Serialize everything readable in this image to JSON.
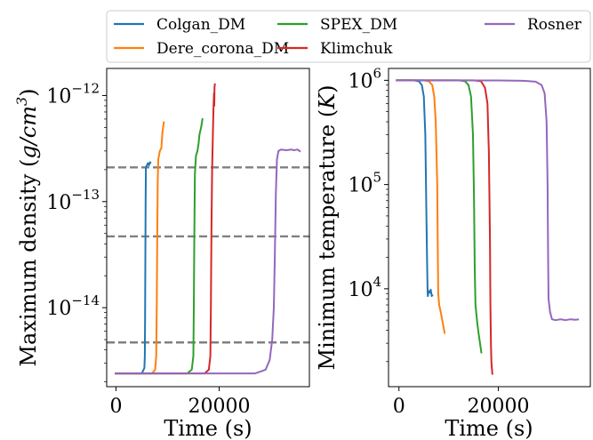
{
  "chart_data": [
    {
      "type": "line",
      "ylabel": "Maximum density (g/cm^3)",
      "ylabel_main": "Maximum density (",
      "ylabel_unit": "g/cm",
      "ylabel_exp": "3",
      "ylabel_close": ")",
      "xlabel": "Time (s)",
      "xlim": [
        -1800,
        37500
      ],
      "ylim": [
        1.8e-15,
        1.8e-12
      ],
      "yscale": "log",
      "xticks": [
        {
          "value": 0,
          "label": "0"
        },
        {
          "value": 20000,
          "label": "20000"
        }
      ],
      "yticks": [
        {
          "value": 1e-14,
          "base": "10",
          "exp": "−14"
        },
        {
          "value": 1e-13,
          "base": "10",
          "exp": "−13"
        },
        {
          "value": 1e-12,
          "base": "10",
          "exp": "−12"
        }
      ],
      "hlines": [
        2.1e-13,
        4.7e-14,
        4.7e-15
      ],
      "series": [
        {
          "name": "Colgan_DM",
          "color": "#1f77b4",
          "points": [
            [
              -200,
              2.4e-15
            ],
            [
              5000,
              2.4e-15
            ],
            [
              5500,
              2.7e-15
            ],
            [
              5600,
              3.5e-15
            ],
            [
              5650,
              8e-15
            ],
            [
              5700,
              3e-14
            ],
            [
              5750,
              1e-13
            ],
            [
              5800,
              2.1e-13
            ],
            [
              6000,
              2.2e-13
            ],
            [
              6200,
              2.3e-13
            ],
            [
              6400,
              2.2e-13
            ],
            [
              6600,
              2.35e-13
            ],
            [
              6800,
              2.3e-13
            ]
          ]
        },
        {
          "name": "Dere_corona_DM",
          "color": "#ff7f0e",
          "points": [
            [
              -200,
              2.4e-15
            ],
            [
              7000,
              2.4e-15
            ],
            [
              7600,
              2.6e-15
            ],
            [
              7800,
              3.5e-15
            ],
            [
              7900,
              1e-14
            ],
            [
              8000,
              5e-14
            ],
            [
              8100,
              1.5e-13
            ],
            [
              8200,
              2.5e-13
            ],
            [
              8500,
              3e-13
            ],
            [
              8800,
              3.2e-13
            ],
            [
              9000,
              4.5e-13
            ],
            [
              9300,
              5.7e-13
            ]
          ]
        },
        {
          "name": "SPEX_DM",
          "color": "#2ca02c",
          "points": [
            [
              -200,
              2.4e-15
            ],
            [
              13800,
              2.4e-15
            ],
            [
              14700,
              2.6e-15
            ],
            [
              15000,
              3.5e-15
            ],
            [
              15100,
              1e-14
            ],
            [
              15200,
              5e-14
            ],
            [
              15300,
              1.8e-13
            ],
            [
              15500,
              2.7e-13
            ],
            [
              15800,
              3e-13
            ],
            [
              16000,
              3.5e-13
            ],
            [
              16200,
              4.3e-13
            ],
            [
              16500,
              5e-13
            ],
            [
              16800,
              6.1e-13
            ]
          ]
        },
        {
          "name": "Klimchuk",
          "color": "#d62728",
          "points": [
            [
              -200,
              2.4e-15
            ],
            [
              17200,
              2.4e-15
            ],
            [
              18000,
              2.6e-15
            ],
            [
              18300,
              3.5e-15
            ],
            [
              18400,
              1e-14
            ],
            [
              18500,
              5e-14
            ],
            [
              18650,
              2e-13
            ],
            [
              18800,
              4.5e-13
            ],
            [
              18900,
              7.5e-13
            ],
            [
              19000,
              1.05e-12
            ],
            [
              19050,
              8e-13
            ],
            [
              19100,
              1.2e-12
            ],
            [
              19200,
              1.3e-12
            ]
          ]
        },
        {
          "name": "Rosner",
          "color": "#9467bd",
          "points": [
            [
              -200,
              2.4e-15
            ],
            [
              27000,
              2.4e-15
            ],
            [
              29000,
              2.6e-15
            ],
            [
              29800,
              3.2e-15
            ],
            [
              30300,
              5e-15
            ],
            [
              30600,
              1e-14
            ],
            [
              30800,
              3e-14
            ],
            [
              31000,
              1.2e-13
            ],
            [
              31200,
              2.5e-13
            ],
            [
              31500,
              3e-13
            ],
            [
              32000,
              3.1e-13
            ],
            [
              33000,
              3.05e-13
            ],
            [
              34000,
              3.1e-13
            ],
            [
              34500,
              3.05e-13
            ],
            [
              35200,
              3.1e-13
            ],
            [
              35800,
              2.95e-13
            ]
          ]
        }
      ]
    },
    {
      "type": "line",
      "ylabel": "Minimum temperature (K)",
      "ylabel_main": "Minimum temperature (",
      "ylabel_unit": "K",
      "ylabel_close": ")",
      "xlabel": "Time (s)",
      "xlim": [
        -2100,
        38500
      ],
      "ylim": [
        1150,
        1300000.0
      ],
      "yscale": "log",
      "xticks": [
        {
          "value": 0,
          "label": "0"
        },
        {
          "value": 20000,
          "label": "20000"
        }
      ],
      "yticks": [
        {
          "value": 10000,
          "base": "10",
          "exp": "4"
        },
        {
          "value": 100000,
          "base": "10",
          "exp": "5"
        },
        {
          "value": 1000000,
          "base": "10",
          "exp": "6"
        }
      ],
      "series": [
        {
          "name": "Colgan_DM",
          "color": "#1f77b4",
          "points": [
            [
              -600,
              1000000.0
            ],
            [
              3000,
              1000000.0
            ],
            [
              4000,
              980000.0
            ],
            [
              4600,
              900000.0
            ],
            [
              5000,
              700000.0
            ],
            [
              5300,
              300000.0
            ],
            [
              5500,
              60000.0
            ],
            [
              5650,
              20000.0
            ],
            [
              5750,
              10000.0
            ],
            [
              5800,
              8500.0
            ],
            [
              6000,
              9500.0
            ],
            [
              6200,
              9200.0
            ],
            [
              6400,
              9800.0
            ],
            [
              6600,
              8500.0
            ],
            [
              6800,
              8800.0
            ]
          ]
        },
        {
          "name": "Dere_corona_DM",
          "color": "#ff7f0e",
          "points": [
            [
              -600,
              1000000.0
            ],
            [
              5000,
              1000000.0
            ],
            [
              6000,
              980000.0
            ],
            [
              6700,
              900000.0
            ],
            [
              7100,
              700000.0
            ],
            [
              7400,
              400000.0
            ],
            [
              7700,
              100000.0
            ],
            [
              7800,
              25000.0
            ],
            [
              7900,
              9000.0
            ],
            [
              8100,
              7000.0
            ],
            [
              8400,
              6000.0
            ],
            [
              8700,
              5000.0
            ],
            [
              9000,
              4200.0
            ],
            [
              9200,
              3700.0
            ]
          ]
        },
        {
          "name": "SPEX_DM",
          "color": "#2ca02c",
          "points": [
            [
              -600,
              1000000.0
            ],
            [
              12000,
              1000000.0
            ],
            [
              13300,
              980000.0
            ],
            [
              14000,
              900000.0
            ],
            [
              14500,
              700000.0
            ],
            [
              14900,
              300000.0
            ],
            [
              15100,
              70000.0
            ],
            [
              15250,
              15000.0
            ],
            [
              15400,
              7000.0
            ],
            [
              15600,
              5500.0
            ],
            [
              15800,
              4500.0
            ],
            [
              16000,
              3800.0
            ],
            [
              16300,
              3000.0
            ],
            [
              16600,
              2400.0
            ]
          ]
        },
        {
          "name": "Klimchuk",
          "color": "#d62728",
          "points": [
            [
              -600,
              1000000.0
            ],
            [
              15000,
              1000000.0
            ],
            [
              16500,
              980000.0
            ],
            [
              17300,
              850000.0
            ],
            [
              17800,
              600000.0
            ],
            [
              18100,
              200000.0
            ],
            [
              18300,
              30000.0
            ],
            [
              18400,
              7000.0
            ],
            [
              18500,
              3000.0
            ],
            [
              18600,
              2000.0
            ],
            [
              18700,
              1700.0
            ],
            [
              18800,
              1500.0
            ]
          ]
        },
        {
          "name": "Rosner",
          "color": "#9467bd",
          "points": [
            [
              -600,
              1000000.0
            ],
            [
              20000,
              998000.0
            ],
            [
              25000,
              990000.0
            ],
            [
              27500,
              970000.0
            ],
            [
              28700,
              900000.0
            ],
            [
              29300,
              750000.0
            ],
            [
              29700,
              400000.0
            ],
            [
              29900,
              100000.0
            ],
            [
              30000,
              20000.0
            ],
            [
              30100,
              8000.0
            ],
            [
              30400,
              6000.0
            ],
            [
              30800,
              5100.0
            ],
            [
              31500,
              5000.0
            ],
            [
              32500,
              5100.0
            ],
            [
              33500,
              5000.0
            ],
            [
              34500,
              5100.0
            ],
            [
              35500,
              5050.0
            ],
            [
              36200,
              5100.0
            ]
          ]
        }
      ]
    }
  ],
  "legend": {
    "position": "top",
    "entries": [
      {
        "label": "Colgan_DM",
        "color": "#1f77b4"
      },
      {
        "label": "Dere_corona_DM",
        "color": "#ff7f0e"
      },
      {
        "label": "SPEX_DM",
        "color": "#2ca02c"
      },
      {
        "label": "Klimchuk",
        "color": "#d62728"
      },
      {
        "label": "Rosner",
        "color": "#9467bd"
      }
    ]
  }
}
